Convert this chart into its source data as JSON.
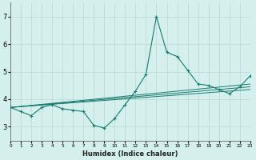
{
  "xlabel": "Humidex (Indice chaleur)",
  "x": [
    0,
    1,
    2,
    3,
    4,
    5,
    6,
    7,
    8,
    9,
    10,
    11,
    12,
    13,
    14,
    15,
    16,
    17,
    18,
    19,
    20,
    21,
    22,
    23
  ],
  "main_line": [
    3.7,
    3.55,
    3.4,
    3.7,
    3.8,
    3.65,
    3.6,
    3.55,
    3.05,
    2.95,
    3.3,
    3.8,
    4.3,
    4.9,
    7.0,
    5.7,
    5.55,
    5.05,
    4.55,
    4.5,
    4.35,
    4.2,
    4.45,
    4.85
  ],
  "trend_lines": [
    [
      3.7,
      4.35
    ],
    [
      3.7,
      4.45
    ],
    [
      3.7,
      4.55
    ]
  ],
  "line_color": "#1a7a6e",
  "bg_color": "#d4f0ec",
  "grid_color": "#b8d8d4",
  "ylim": [
    2.5,
    7.5
  ],
  "yticks": [
    3,
    4,
    5,
    6,
    7
  ],
  "xlim": [
    0,
    23
  ]
}
